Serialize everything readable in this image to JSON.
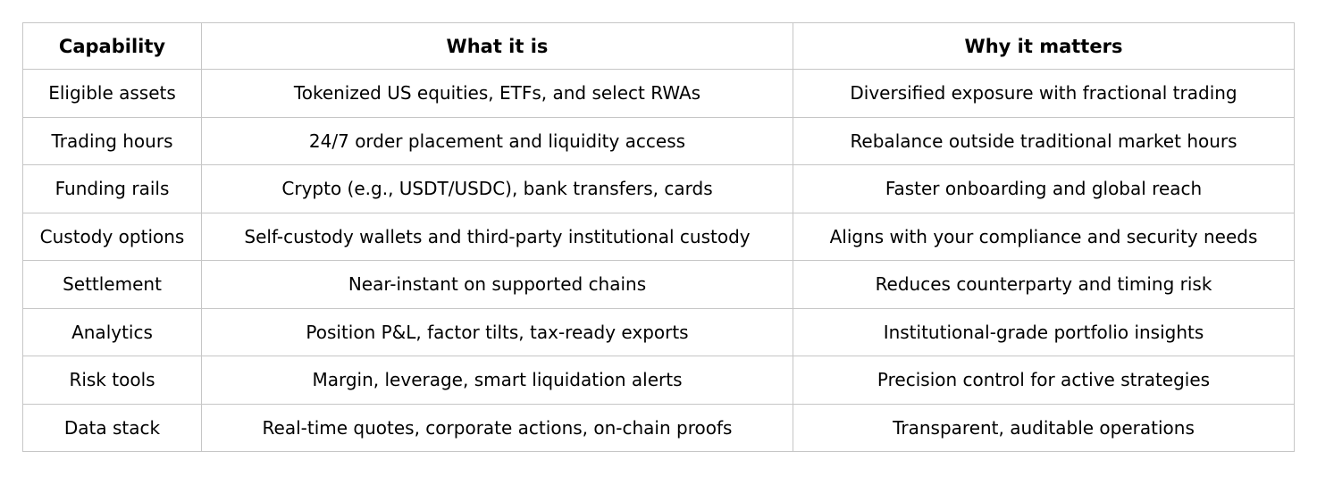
{
  "page": {
    "background_color": "#ffffff",
    "border_color": "#c6c6c6",
    "text_color": "#000000"
  },
  "table": {
    "headers": [
      "Capability",
      "What it is",
      "Why it matters"
    ],
    "rows": [
      [
        "Eligible assets",
        "Tokenized US equities, ETFs, and select RWAs",
        "Diversified exposure with fractional trading"
      ],
      [
        "Trading hours",
        "24/7 order placement and liquidity access",
        "Rebalance outside traditional market hours"
      ],
      [
        "Funding rails",
        "Crypto (e.g., USDT/USDC), bank transfers, cards",
        "Faster onboarding and global reach"
      ],
      [
        "Custody options",
        "Self-custody wallets and third-party institutional custody",
        "Aligns with your compliance and security needs"
      ],
      [
        "Settlement",
        "Near-instant on supported chains",
        "Reduces counterparty and timing risk"
      ],
      [
        "Analytics",
        "Position P&L, factor tilts, tax-ready exports",
        "Institutional-grade portfolio insights"
      ],
      [
        "Risk tools",
        "Margin, leverage, smart liquidation alerts",
        "Precision control for active strategies"
      ],
      [
        "Data stack",
        "Real-time quotes, corporate actions, on-chain proofs",
        "Transparent, auditable operations"
      ]
    ]
  }
}
